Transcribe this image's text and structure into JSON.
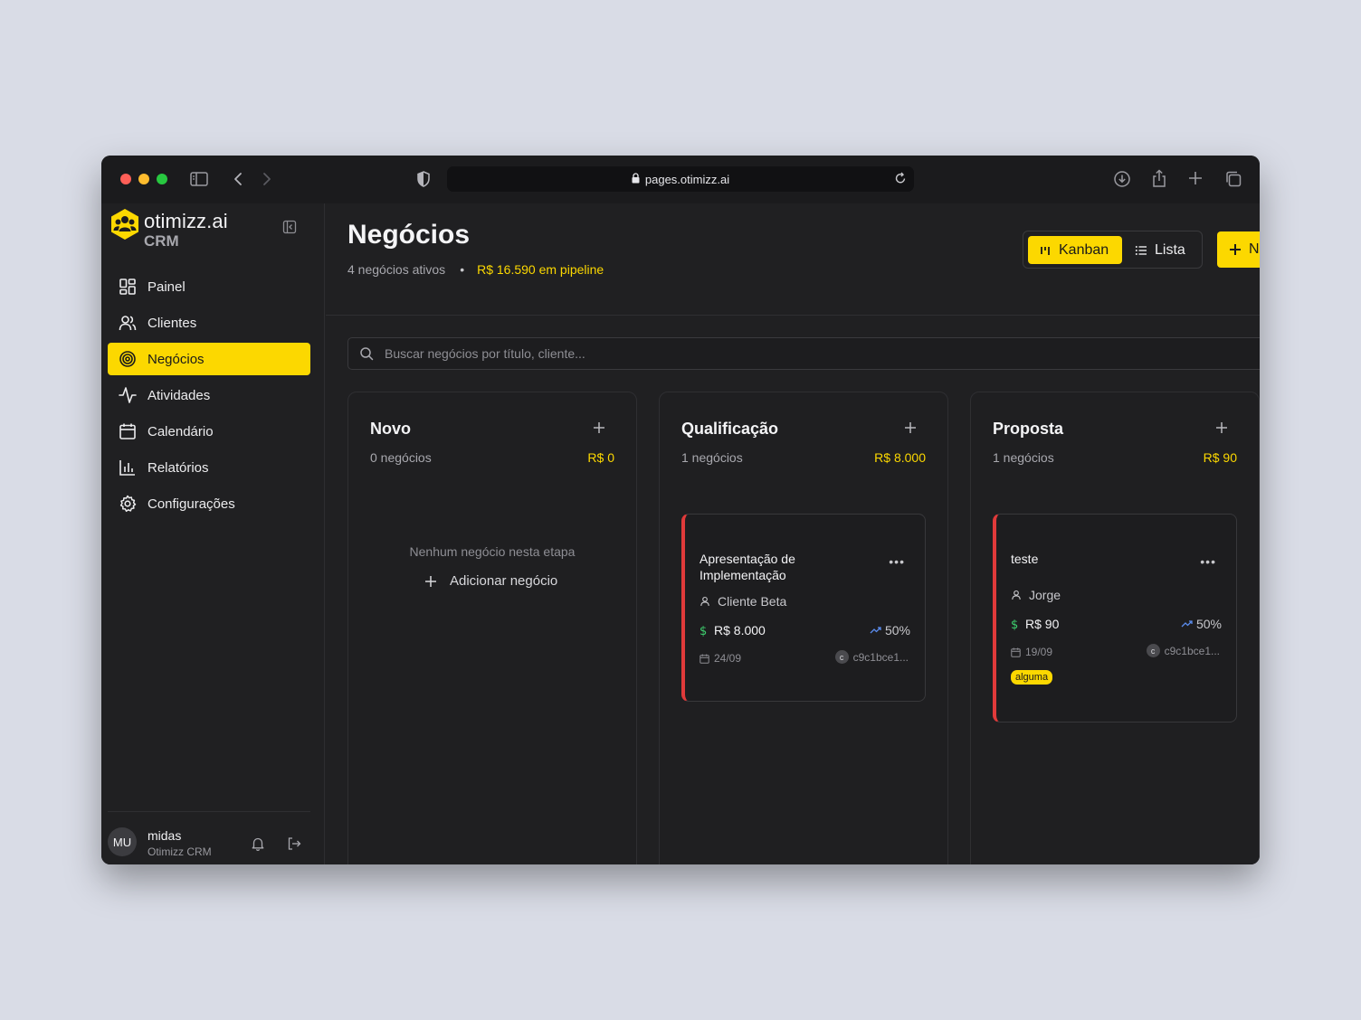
{
  "browser": {
    "url": "pages.otimizz.ai"
  },
  "sidebar": {
    "brand": "otimizz.ai",
    "brand_sub": "CRM",
    "items": [
      {
        "label": "Painel",
        "icon": "dashboard-icon"
      },
      {
        "label": "Clientes",
        "icon": "users-icon"
      },
      {
        "label": "Negócios",
        "icon": "target-icon",
        "active": true
      },
      {
        "label": "Atividades",
        "icon": "activity-icon"
      },
      {
        "label": "Calendário",
        "icon": "calendar-icon"
      },
      {
        "label": "Relatórios",
        "icon": "bar-chart-icon"
      },
      {
        "label": "Configurações",
        "icon": "gear-icon"
      }
    ],
    "user": {
      "initials": "MU",
      "name": "midas",
      "org": "Otimizz CRM"
    }
  },
  "header": {
    "title": "Negócios",
    "active_count": "4 negócios ativos",
    "pipeline": "R$ 16.590 em pipeline",
    "view_kanban": "Kanban",
    "view_list": "Lista",
    "new_label": "N"
  },
  "search": {
    "placeholder": "Buscar negócios por título, cliente..."
  },
  "colors": {
    "accent": "#fcd800",
    "card_border": "#e03a3a",
    "money": "#3ecf6e",
    "trend": "#5b8def"
  },
  "columns": [
    {
      "title": "Novo",
      "count": "0 negócios",
      "total": "R$ 0",
      "empty_text": "Nenhum negócio nesta etapa",
      "empty_add": "Adicionar negócio"
    },
    {
      "title": "Qualificação",
      "count": "1 negócios",
      "total": "R$ 8.000",
      "cards": [
        {
          "title": "Apresentação de Implementação",
          "client": "Cliente Beta",
          "value": "R$ 8.000",
          "probability": "50%",
          "date": "24/09",
          "owner_initial": "c",
          "owner": "c9c1bce1..."
        }
      ]
    },
    {
      "title": "Proposta",
      "count": "1 negócios",
      "total": "R$ 90",
      "cards": [
        {
          "title": "teste",
          "client": "Jorge",
          "value": "R$ 90",
          "probability": "50%",
          "date": "19/09",
          "owner_initial": "c",
          "owner": "c9c1bce1...",
          "tag": "alguma"
        }
      ]
    }
  ]
}
